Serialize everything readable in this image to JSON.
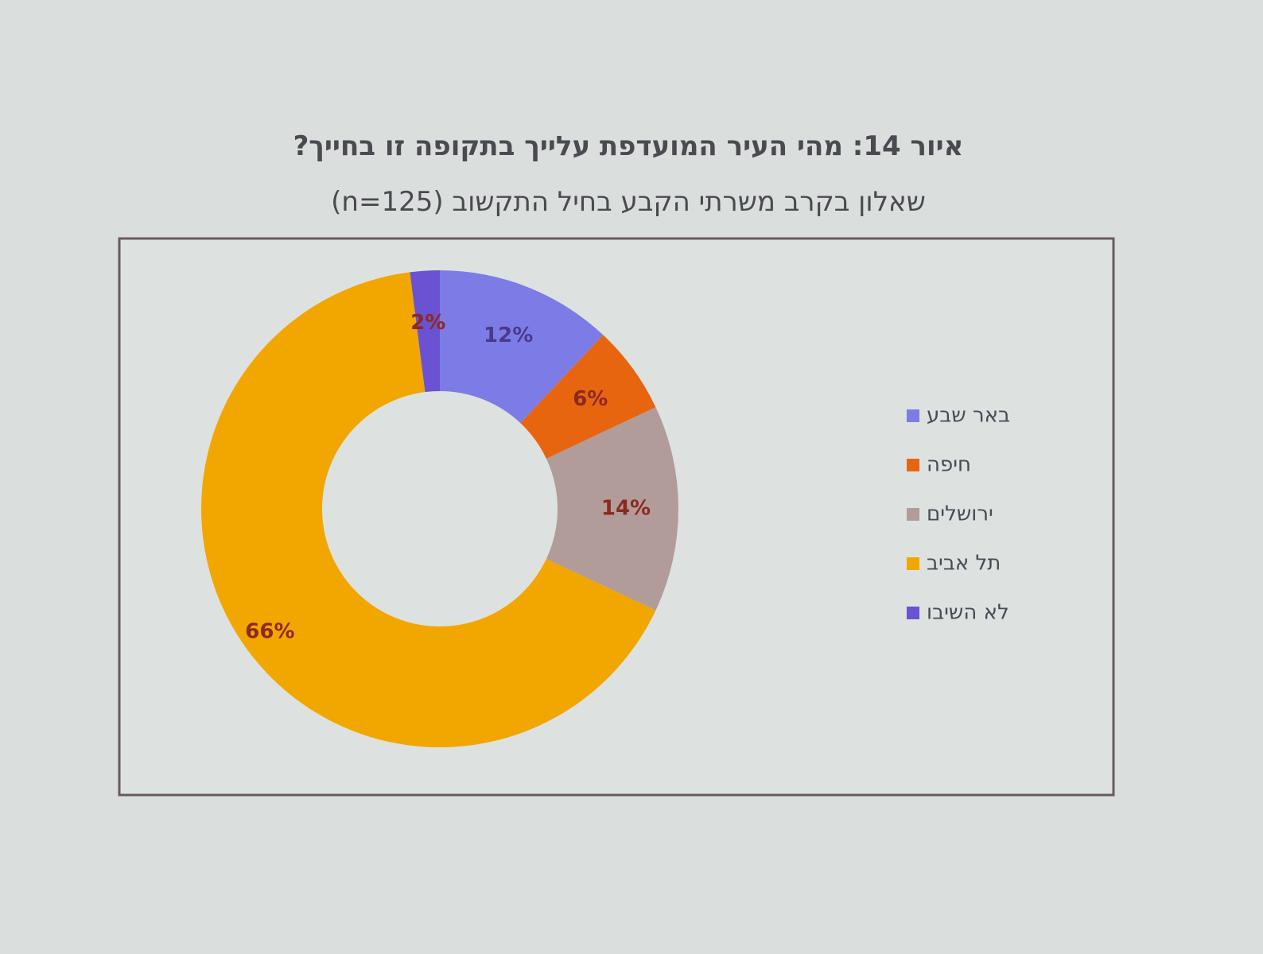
{
  "chart_data": {
    "type": "donut",
    "title": "איור 14: מהי העיר המועדפת עלייך בתקופה זו בחייך?",
    "subtitle": "שאלון בקרב משרתי הקבע בחיל התקשוב (n=125)",
    "categories": [
      "באר שבע",
      "חיפה",
      "ירושלים",
      "תל אביב",
      "לא השיבו"
    ],
    "values": [
      12,
      6,
      14,
      66,
      2
    ],
    "value_labels": [
      "12%",
      "6%",
      "14%",
      "66%",
      "2%"
    ],
    "colors": [
      "#7d7ce6",
      "#e8650f",
      "#b19c99",
      "#f2a600",
      "#6b52d2"
    ]
  }
}
